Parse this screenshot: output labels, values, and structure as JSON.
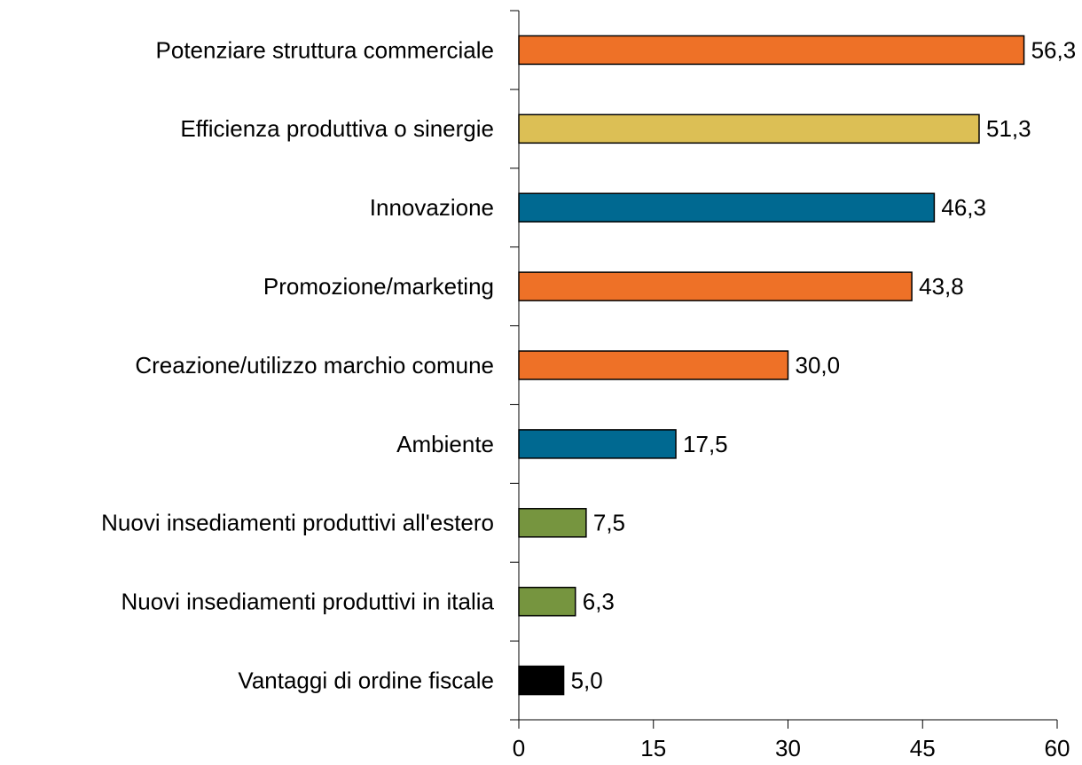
{
  "chart_data": {
    "type": "bar",
    "orientation": "horizontal",
    "categories": [
      "Potenziare struttura commerciale",
      "Efficienza produttiva o sinergie",
      "Innovazione",
      "Promozione/marketing",
      "Creazione/utilizzo marchio comune",
      "Ambiente",
      "Nuovi insediamenti produttivi all'estero",
      "Nuovi insediamenti produttivi in italia",
      "Vantaggi di ordine fiscale"
    ],
    "values": [
      56.3,
      51.3,
      46.3,
      43.8,
      30.0,
      17.5,
      7.5,
      6.3,
      5.0
    ],
    "value_labels": [
      "56,3",
      "51,3",
      "46,3",
      "43,8",
      "30,0",
      "17,5",
      "7,5",
      "6,3",
      "5,0"
    ],
    "colors": [
      "#ee7127",
      "#dcbf55",
      "#006991",
      "#ee7127",
      "#ee7127",
      "#006991",
      "#76953f",
      "#76953f",
      "#000000"
    ],
    "xlim": [
      0,
      60
    ],
    "xticks": [
      0,
      15,
      30,
      45,
      60
    ]
  }
}
